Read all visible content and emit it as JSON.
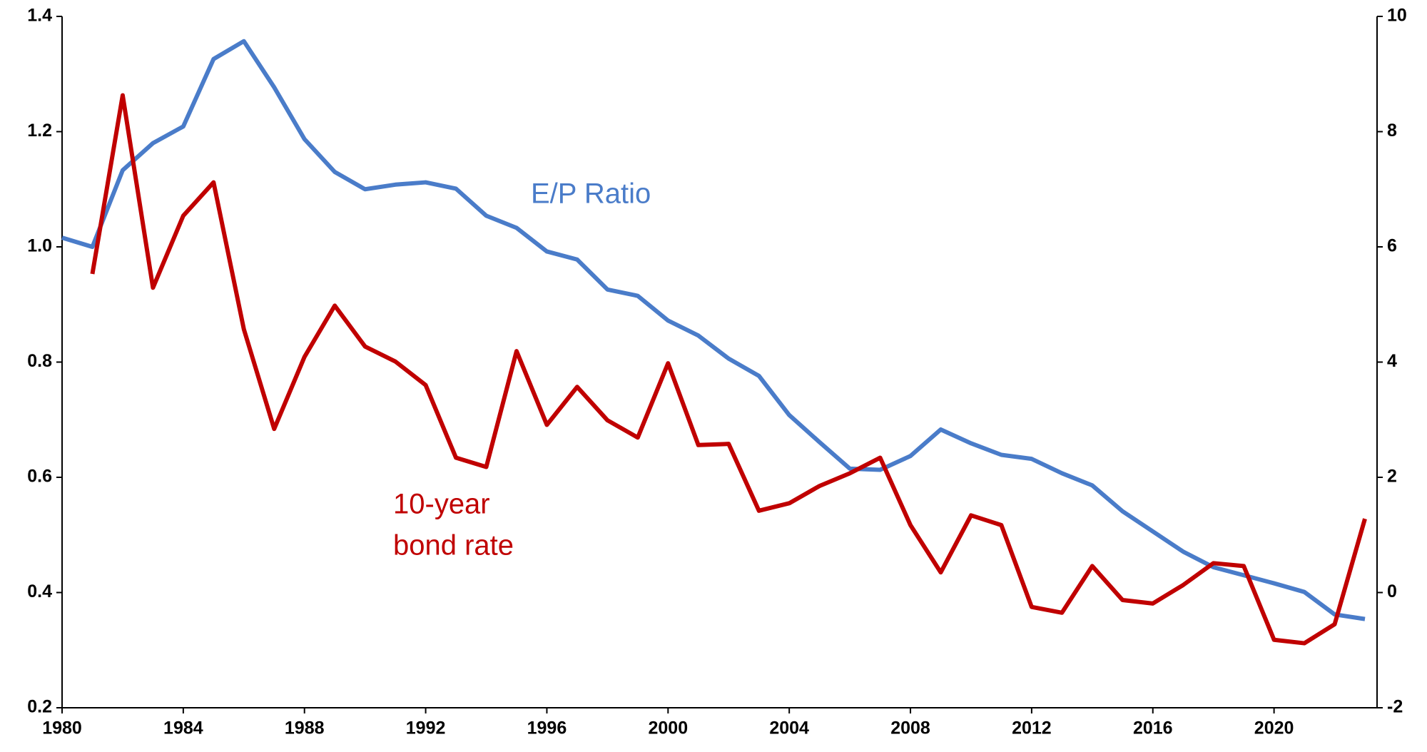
{
  "chart_data": {
    "type": "line",
    "x": [
      1980,
      1981,
      1982,
      1983,
      1984,
      1985,
      1986,
      1987,
      1988,
      1989,
      1990,
      1991,
      1992,
      1993,
      1994,
      1995,
      1996,
      1997,
      1998,
      1999,
      2000,
      2001,
      2002,
      2003,
      2004,
      2005,
      2006,
      2007,
      2008,
      2009,
      2010,
      2011,
      2012,
      2013,
      2014,
      2015,
      2016,
      2017,
      2018,
      2019,
      2020,
      2021,
      2022,
      2023
    ],
    "series": [
      {
        "color": "#4a7cc9",
        "values": [
          1.016,
          1.0,
          1.133,
          1.18,
          1.209,
          1.326,
          1.357,
          1.277,
          1.187,
          1.13,
          1.1,
          1.108,
          1.112,
          1.101,
          1.054,
          1.033,
          0.992,
          0.978,
          0.926,
          0.915,
          0.872,
          0.846,
          0.806,
          0.776,
          0.708,
          0.661,
          0.615,
          0.613,
          0.637,
          0.683,
          0.659,
          0.639,
          0.632,
          0.607,
          0.586,
          0.541,
          0.506,
          0.471,
          0.444,
          0.43,
          0.416,
          0.401,
          0.362,
          0.354
        ]
      },
      {
        "color": "#c00000",
        "axis": "y2",
        "values": [
          null,
          5.53,
          8.63,
          5.29,
          6.54,
          7.12,
          4.57,
          2.84,
          4.09,
          4.98,
          4.27,
          4.01,
          3.6,
          2.34,
          2.18,
          4.19,
          2.91,
          3.57,
          2.99,
          2.69,
          3.98,
          2.56,
          2.58,
          1.42,
          1.55,
          1.85,
          2.07,
          2.34,
          1.17,
          0.35,
          1.34,
          1.17,
          -0.25,
          -0.35,
          0.46,
          -0.13,
          -0.19,
          0.13,
          0.51,
          0.46,
          -0.82,
          -0.88,
          -0.55,
          1.28
        ]
      }
    ],
    "annotations": [
      {
        "lines": [
          "E/P Ratio"
        ],
        "color": "#4a7cc9"
      },
      {
        "lines": [
          "10-year",
          "bond rate"
        ],
        "color": "#c00000"
      }
    ],
    "xlim": [
      1980,
      2023.4
    ],
    "xticks": [
      1980,
      1984,
      1988,
      1992,
      1996,
      2000,
      2004,
      2008,
      2012,
      2016,
      2020
    ],
    "ylim": [
      0.2,
      1.4
    ],
    "yticks": [
      0.2,
      0.4,
      0.6,
      0.8,
      {
        "value": 1.0,
        "label": "1.0"
      },
      1.2,
      1.4
    ],
    "y2lim": [
      -2,
      10
    ],
    "y2ticks": [
      -2,
      0,
      2,
      4,
      6,
      8,
      10
    ]
  }
}
